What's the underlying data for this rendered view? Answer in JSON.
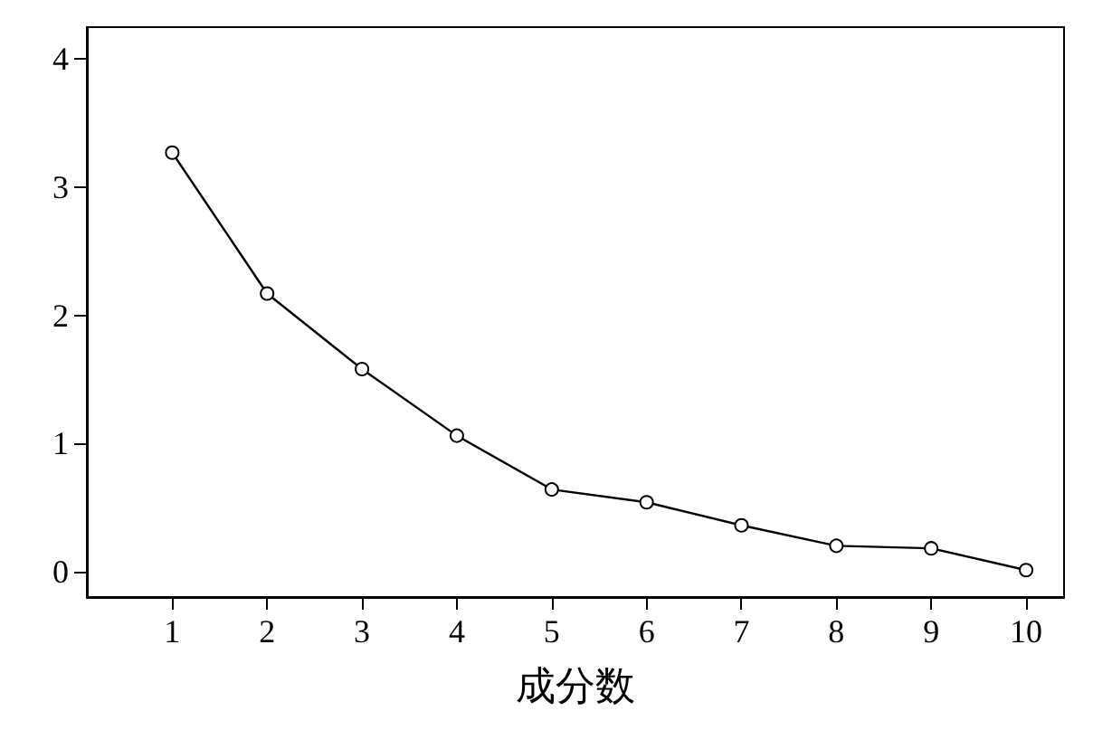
{
  "chart_data": {
    "type": "line",
    "xlabel": "成分数",
    "x": [
      1,
      2,
      3,
      4,
      5,
      6,
      7,
      8,
      9,
      10
    ],
    "series": [
      {
        "color": "#000000",
        "values": [
          3.27,
          2.17,
          1.58,
          1.06,
          0.64,
          0.54,
          0.36,
          0.2,
          0.18,
          0.01
        ]
      }
    ],
    "xlim": [
      0.1,
      10.4
    ],
    "xticks": [
      1,
      2,
      3,
      4,
      5,
      6,
      7,
      8,
      9,
      10
    ],
    "ylim": [
      -0.2,
      4.25
    ],
    "yticks": [
      0,
      1,
      2,
      3,
      4
    ],
    "marker": "circle",
    "line_style": "solid"
  }
}
